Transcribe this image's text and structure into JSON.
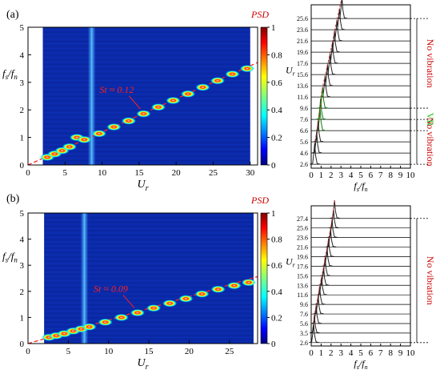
{
  "chart_data": [
    {
      "panel_label": "(a)",
      "type": "heatmap",
      "xlabel_main": "U",
      "xlabel_sub": "r",
      "ylabel_main": "f",
      "ylabel_sub1": "s",
      "ylabel_mid": "/f",
      "ylabel_sub2": "n",
      "xlim": [
        0,
        31
      ],
      "ylim": [
        0,
        5
      ],
      "xticks": [
        "0",
        "5",
        "10",
        "15",
        "20",
        "25",
        "30"
      ],
      "yticks": [
        "0",
        "1",
        "2",
        "3",
        "4",
        "5"
      ],
      "colorbar": {
        "title": "PSD",
        "ticks": [
          "0",
          "0.2",
          "0.4",
          "0.6",
          "0.8",
          "1"
        ]
      },
      "annotation": "St ≈ 0.12",
      "strouhal": 0.12,
      "heatmap_xrange": [
        2,
        30
      ],
      "vertical_band_x": 8.6,
      "peaks": [
        [
          2.6,
          0.28
        ],
        [
          3.6,
          0.4
        ],
        [
          4.6,
          0.52
        ],
        [
          5.6,
          0.66
        ],
        [
          6.6,
          1.0
        ],
        [
          7.6,
          0.92
        ],
        [
          9.6,
          1.14
        ],
        [
          11.6,
          1.38
        ],
        [
          13.6,
          1.6
        ],
        [
          15.6,
          1.86
        ],
        [
          17.6,
          2.1
        ],
        [
          19.6,
          2.34
        ],
        [
          21.6,
          2.58
        ],
        [
          23.6,
          2.82
        ],
        [
          25.6,
          3.06
        ],
        [
          27.6,
          3.3
        ],
        [
          29.6,
          3.5
        ]
      ],
      "waterfall": {
        "ylabel_main": "U",
        "ylabel_sub": "r",
        "xlabel_main": "f",
        "xlabel_sub1": "s",
        "xlabel_mid": "/f",
        "xlabel_sub2": "n",
        "xlim": [
          0,
          10
        ],
        "xticks": [
          "0",
          "1",
          "2",
          "3",
          "4",
          "5",
          "6",
          "7",
          "8",
          "9",
          "10"
        ],
        "ur_labels": [
          "25.6",
          "23.6",
          "21.6",
          "19.6",
          "17.6",
          "15.6",
          "13.6",
          "11.6",
          "9.6",
          "7.6",
          "6.6",
          "5.6",
          "4.6",
          "2.6"
        ],
        "peak_freq": [
          3.1,
          2.85,
          2.6,
          2.35,
          2.15,
          1.9,
          1.65,
          1.4,
          1.15,
          0.95,
          0.9,
          0.7,
          0.55,
          0.35
        ],
        "regions": [
          {
            "label": "No vibration",
            "color": "#cc0000",
            "ur_from": "7.6",
            "ur_to": "2.6"
          },
          {
            "label": "VR",
            "color": "#22bb22",
            "ur_from": "9.6",
            "ur_to": "6.6"
          },
          {
            "label": "No vibration",
            "color": "#cc0000",
            "ur_from": "25.6",
            "ur_to": "9.6"
          }
        ]
      }
    },
    {
      "panel_label": "(b)",
      "type": "heatmap",
      "xlabel_main": "U",
      "xlabel_sub": "r",
      "ylabel_main": "f",
      "ylabel_sub1": "s",
      "ylabel_mid": "/f",
      "ylabel_sub2": "n",
      "xlim": [
        0,
        28.5
      ],
      "ylim": [
        0,
        5
      ],
      "xticks": [
        "0",
        "5",
        "10",
        "15",
        "20",
        "25"
      ],
      "yticks": [
        "0",
        "1",
        "2",
        "3",
        "4",
        "5"
      ],
      "colorbar": {
        "title": "PSD",
        "ticks": [
          "0",
          "0.2",
          "0.4",
          "0.6",
          "0.8",
          "1"
        ]
      },
      "annotation": "St ≈ 0.09",
      "strouhal": 0.09,
      "heatmap_xrange": [
        2,
        28
      ],
      "vertical_band_x": 7.0,
      "peaks": [
        [
          2.6,
          0.24
        ],
        [
          3.5,
          0.3
        ],
        [
          4.5,
          0.38
        ],
        [
          5.6,
          0.48
        ],
        [
          6.6,
          0.56
        ],
        [
          7.6,
          0.64
        ],
        [
          9.6,
          0.82
        ],
        [
          11.6,
          1.0
        ],
        [
          13.6,
          1.18
        ],
        [
          15.6,
          1.36
        ],
        [
          17.6,
          1.54
        ],
        [
          19.6,
          1.72
        ],
        [
          21.6,
          1.9
        ],
        [
          23.6,
          2.08
        ],
        [
          25.6,
          2.22
        ],
        [
          27.4,
          2.34
        ]
      ],
      "waterfall": {
        "ylabel_main": "U",
        "ylabel_sub": "r",
        "xlabel_main": "f",
        "xlabel_sub1": "s",
        "xlabel_mid": "/f",
        "xlabel_sub2": "n",
        "xlim": [
          0,
          10
        ],
        "xticks": [
          "0",
          "1",
          "2",
          "3",
          "4",
          "5",
          "6",
          "7",
          "8",
          "9",
          "10"
        ],
        "ur_labels": [
          "27.4",
          "25.6",
          "23.6",
          "21.6",
          "19.6",
          "17.6",
          "15.6",
          "13.6",
          "11.6",
          "9.6",
          "7.6",
          "5.6",
          "3.5",
          "2.6"
        ],
        "peak_freq": [
          2.35,
          2.25,
          2.1,
          1.95,
          1.75,
          1.6,
          1.4,
          1.25,
          1.05,
          0.85,
          0.7,
          0.5,
          0.32,
          0.25
        ],
        "regions": [
          {
            "label": "No vibration",
            "color": "#cc0000",
            "ur_from": "27.4",
            "ur_to": "2.6"
          }
        ]
      }
    }
  ]
}
